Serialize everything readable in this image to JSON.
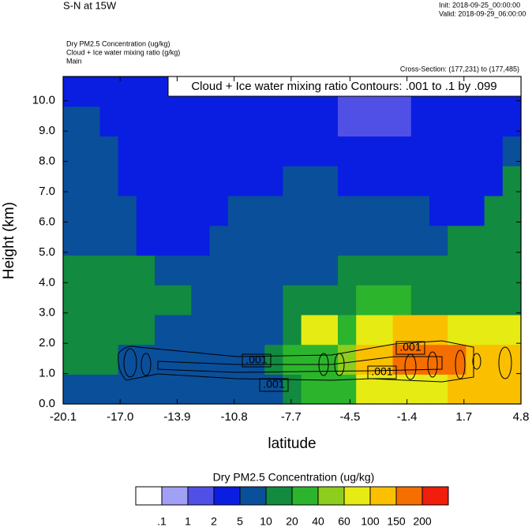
{
  "chart_data": {
    "type": "contour",
    "title": "S-N at 15W",
    "init": "Init: 2018-09-25_00:00:00",
    "valid": "Valid: 2018-09-29_06:00:00",
    "field_lines": [
      "Dry PM2.5 Concentration   (ug/kg)",
      "Cloud + Ice water mixing ratio   (g/kg)",
      "Main"
    ],
    "cross_section": "Cross-Section: (177,231) to (177,485)",
    "contour_info": "Cloud + Ice water mixing ratio Contours: .001 to .1 by .099",
    "contour_labels": [
      ".001",
      ".001",
      ".001",
      ".001"
    ],
    "xlabel": "latitude",
    "ylabel": "Height (km)",
    "xlim": [
      -20.1,
      4.8
    ],
    "ylim": [
      0,
      10.8
    ],
    "xticks": [
      -20.1,
      {
        "value": -17,
        "label": "-17.0"
      },
      -13.9,
      -10.8,
      -7.7,
      -4.5,
      -1.4,
      1.7,
      4.8
    ],
    "yticks": [
      {
        "value": 0,
        "label": "0.0"
      },
      {
        "value": 1,
        "label": "1.0"
      },
      {
        "value": 2,
        "label": "2.0"
      },
      {
        "value": 3,
        "label": "3.0"
      },
      {
        "value": 4,
        "label": "4.0"
      },
      {
        "value": 5,
        "label": "5.0"
      },
      {
        "value": 6,
        "label": "6.0"
      },
      {
        "value": 7,
        "label": "7.0"
      },
      {
        "value": 8,
        "label": "8.0"
      },
      {
        "value": 9,
        "label": "9.0"
      },
      {
        "value": 10,
        "label": "10.0"
      }
    ],
    "field": [
      [
        7,
        7,
        7,
        7,
        7,
        7,
        7,
        7,
        7,
        7,
        7,
        7,
        15,
        30,
        30,
        30,
        70,
        70,
        70,
        70,
        80,
        110,
        110,
        110,
        110
      ],
      [
        15,
        15,
        15,
        7,
        7,
        7,
        7,
        7,
        7,
        7,
        7,
        15,
        30,
        30,
        30,
        50,
        110,
        110,
        160,
        160,
        160,
        160,
        110,
        110,
        110
      ],
      [
        15,
        15,
        15,
        15,
        15,
        7,
        7,
        7,
        7,
        7,
        7,
        7,
        15,
        80,
        80,
        30,
        60,
        60,
        110,
        110,
        110,
        70,
        70,
        70,
        70
      ],
      [
        15,
        15,
        15,
        15,
        15,
        15,
        15,
        7,
        7,
        7,
        7,
        7,
        15,
        15,
        15,
        15,
        25,
        25,
        25,
        15,
        15,
        15,
        15,
        15,
        15
      ],
      [
        15,
        15,
        15,
        15,
        15,
        7,
        7,
        7,
        7,
        7,
        7,
        7,
        7,
        7,
        7,
        15,
        15,
        15,
        15,
        15,
        15,
        15,
        15,
        15,
        15
      ],
      [
        7,
        7,
        7,
        7,
        4,
        4,
        4,
        4,
        7,
        7,
        7,
        7,
        7,
        7,
        7,
        7,
        7,
        7,
        7,
        7,
        7,
        15,
        15,
        15,
        15
      ],
      [
        7,
        7,
        7,
        7,
        4,
        4,
        4,
        4,
        4,
        7,
        7,
        7,
        7,
        7,
        7,
        7,
        7,
        7,
        7,
        7,
        4,
        4,
        4,
        15,
        15
      ],
      [
        7,
        7,
        7,
        4,
        4,
        4,
        4,
        4,
        4,
        4,
        4,
        4,
        7,
        7,
        7,
        4,
        4,
        4,
        4,
        4,
        4,
        4,
        4,
        4,
        15
      ],
      [
        7,
        7,
        7,
        4,
        4,
        4,
        4,
        4,
        4,
        4,
        4,
        4,
        4,
        4,
        4,
        4,
        4,
        4,
        4,
        4,
        4,
        4,
        4,
        4,
        7
      ],
      [
        7,
        7,
        4,
        4,
        4,
        4,
        4,
        4,
        4,
        4,
        4,
        4,
        4,
        4,
        4,
        1.5,
        1.5,
        1.5,
        1.5,
        4,
        4,
        4,
        4,
        4,
        4
      ],
      [
        4,
        4,
        4,
        4,
        4,
        4,
        4,
        4,
        4,
        4,
        4,
        4,
        4,
        4,
        4,
        1.5,
        1.5,
        1.5,
        1.5,
        4,
        4,
        4,
        4,
        4,
        4
      ]
    ],
    "colorbar_title": "Dry PM2.5 Concentration  (ug/kg)",
    "levels": [
      {
        "value": 0.1,
        "label": ".1"
      },
      1,
      2,
      5,
      10,
      20,
      40,
      60,
      100,
      150,
      200
    ],
    "colors": [
      "#ffffff",
      "#a0a0f5",
      "#5050e6",
      "#0a1ee1",
      "#0a4f9a",
      "#128a40",
      "#2db42d",
      "#8ccd1e",
      "#e6eb14",
      "#fac000",
      "#f56e00",
      "#f01e0a"
    ]
  }
}
